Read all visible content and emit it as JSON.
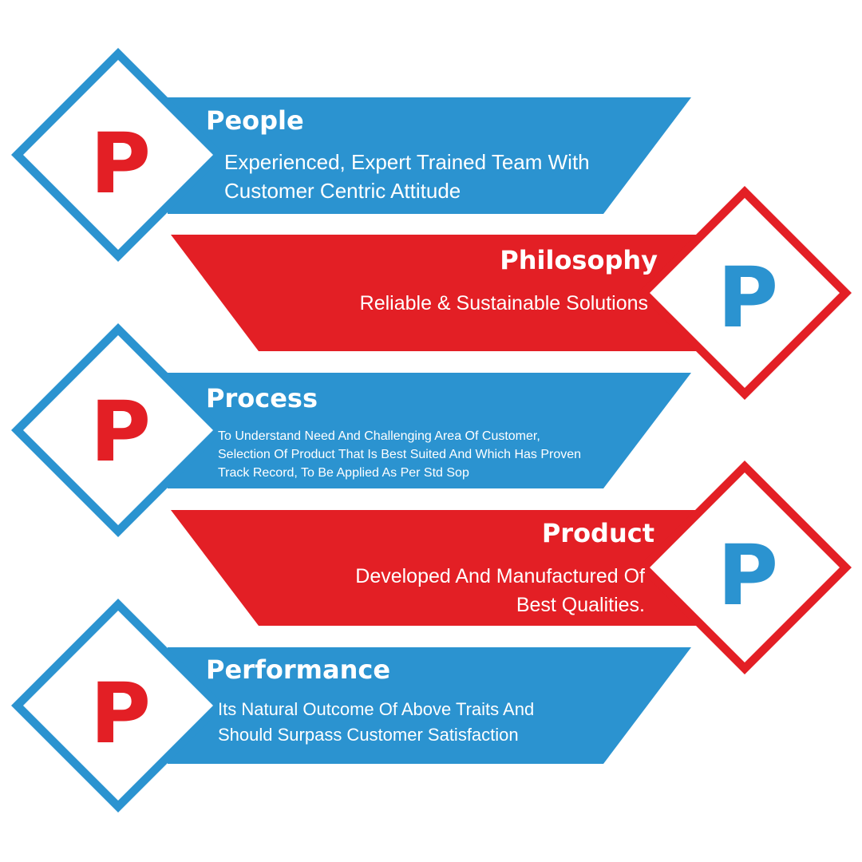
{
  "colors": {
    "blue": "#2b93d0",
    "red": "#e31f25",
    "text": "#ffffff",
    "background": "#ffffff"
  },
  "items": [
    {
      "letter": "P",
      "title": "People",
      "lines": [
        "Experienced, Expert Trained Team With",
        "Customer Centric Attitude"
      ],
      "band_color": "blue",
      "letter_color": "red"
    },
    {
      "letter": "P",
      "title": "Philosophy",
      "lines": [
        "Reliable & Sustainable Solutions"
      ],
      "band_color": "red",
      "letter_color": "blue"
    },
    {
      "letter": "P",
      "title": "Process",
      "lines": [
        "To Understand Need And Challenging Area Of Customer,",
        "Selection Of Product That Is Best Suited And Which Has Proven",
        "Track Record, To Be Applied As Per Std Sop"
      ],
      "band_color": "blue",
      "letter_color": "red"
    },
    {
      "letter": "P",
      "title": "Product",
      "lines": [
        "Developed And Manufactured Of",
        "Best Qualities."
      ],
      "band_color": "red",
      "letter_color": "blue"
    },
    {
      "letter": "P",
      "title": "Performance",
      "lines": [
        "Its Natural Outcome Of Above  Traits And",
        "Should Surpass Customer Satisfaction"
      ],
      "band_color": "blue",
      "letter_color": "red"
    }
  ]
}
